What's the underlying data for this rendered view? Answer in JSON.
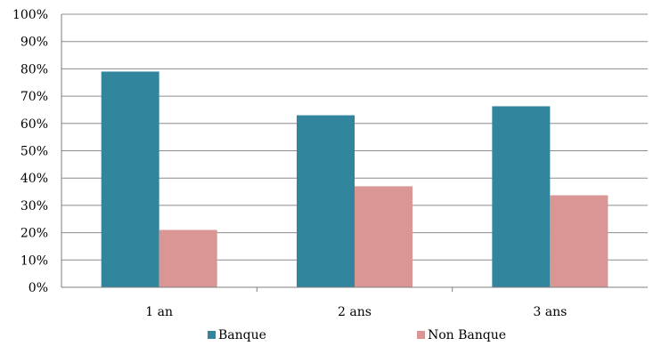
{
  "chart_data": {
    "type": "bar",
    "categories": [
      "1 an",
      "2 ans",
      "3 ans"
    ],
    "series": [
      {
        "name": "Banque",
        "values": [
          79,
          63,
          66.3
        ],
        "color": "#31859c"
      },
      {
        "name": "Non Banque",
        "values": [
          21,
          37,
          33.7
        ],
        "color": "#d99694"
      }
    ],
    "ylim": [
      0,
      100
    ],
    "yticks": [
      0,
      10,
      20,
      30,
      40,
      50,
      60,
      70,
      80,
      90,
      100
    ],
    "ytick_suffix": "%",
    "grid": true,
    "legend_position": "bottom"
  }
}
